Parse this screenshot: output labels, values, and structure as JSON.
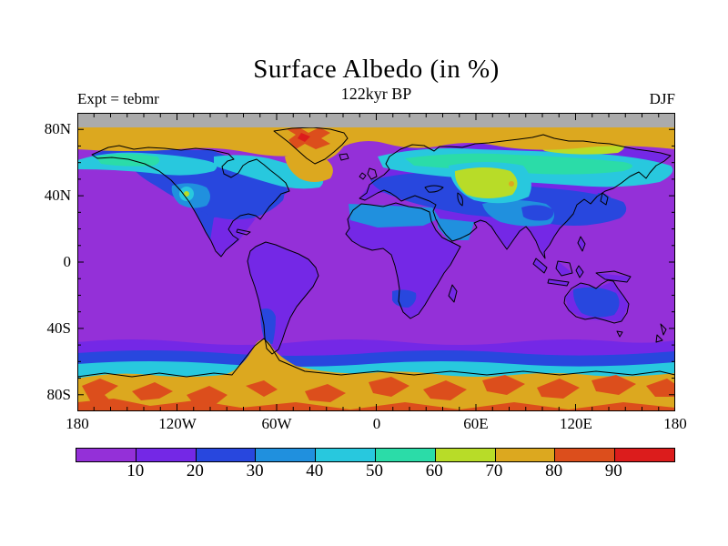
{
  "header": {
    "title": "Surface Albedo (in %)",
    "subtitle": "122kyr BP",
    "experiment": "Expt = tebmr",
    "season": "DJF"
  },
  "map": {
    "lat_labels": [
      "80N",
      "40N",
      "0",
      "40S",
      "80S"
    ],
    "lon_labels": [
      "180",
      "120W",
      "60W",
      "0",
      "60E",
      "120E",
      "180"
    ],
    "no_data_color": "#ABABAB"
  },
  "colorbar": {
    "labels": [
      "10",
      "20",
      "30",
      "40",
      "50",
      "60",
      "70",
      "80",
      "90"
    ],
    "colors": [
      "#9430D8",
      "#7428E6",
      "#2847DE",
      "#2090DE",
      "#28C8DE",
      "#2BDCA8",
      "#B8DC28",
      "#DCA81F",
      "#DC4E1C",
      "#DC1C1C"
    ]
  },
  "chart_data": {
    "type": "heatmap",
    "title": "Surface Albedo (in %)",
    "subtitle": "122kyr BP",
    "experiment": "tebmr",
    "season": "DJF",
    "units": "%",
    "projection": "equirectangular world map",
    "lon_range": [
      -180,
      180
    ],
    "lat_range": [
      -90,
      90
    ],
    "lon_tick_labels": [
      "180",
      "120W",
      "60W",
      "0",
      "60E",
      "120E",
      "180"
    ],
    "lat_tick_labels": [
      "80N",
      "40N",
      "0",
      "40S",
      "80S"
    ],
    "levels": [
      0,
      10,
      20,
      30,
      40,
      50,
      60,
      70,
      80,
      90,
      100
    ],
    "palette": [
      "#9430D8",
      "#7428E6",
      "#2847DE",
      "#2090DE",
      "#28C8DE",
      "#2BDCA8",
      "#B8DC28",
      "#DCA81F",
      "#DC4E1C",
      "#DC1C1C"
    ],
    "no_data": {
      "region": "North polar cap poleward of ~81N",
      "color": "#ABABAB"
    },
    "legend_position": "bottom horizontal colorbar",
    "regions": [
      {
        "region": "Tropical and mid-latitude oceans",
        "albedo_pct": "0-10"
      },
      {
        "region": "Equatorial land (Amazon, Congo, maritime continent)",
        "albedo_pct": "10-20"
      },
      {
        "region": "Mid-latitude land (USA, Europe, East Asia, Patagonia, S Africa)",
        "albedo_pct": "20-30"
      },
      {
        "region": "Sahara, Arabia, SW North America, Australian interior",
        "albedo_pct": "20-40"
      },
      {
        "region": "Boreal Canada, Alaska, Scandinavia, Siberia (snow cover)",
        "albedo_pct": "40-60"
      },
      {
        "region": "Central Siberia / Volga snow patches, Rockies spot",
        "albedo_pct": "60-70"
      },
      {
        "region": "Arctic sea ice, Hudson Bay, Canadian Arctic, Greenland margin",
        "albedo_pct": "70-80"
      },
      {
        "region": "Greenland interior ice sheet",
        "albedo_pct": "80-95"
      },
      {
        "region": "Antarctic sea-ice fringe (narrow cyan-blue transition)",
        "albedo_pct": "20-60"
      },
      {
        "region": "Antarctica and Southern Ocean pack ice",
        "albedo_pct": "70-80 with 80-95 patches"
      }
    ]
  }
}
